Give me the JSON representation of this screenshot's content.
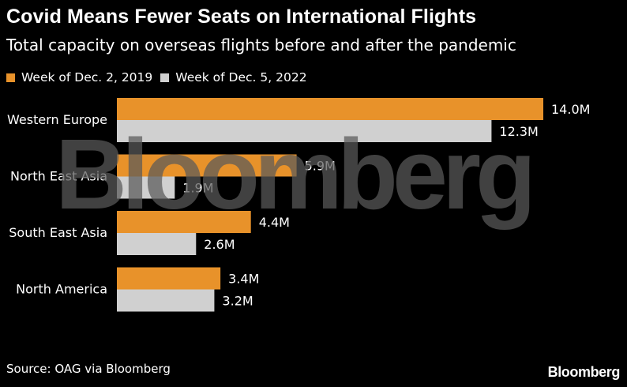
{
  "title": "Covid Means Fewer Seats on International Flights",
  "subtitle": "Total capacity on overseas flights before and after the pandemic",
  "source": "Source: OAG via Bloomberg",
  "logo": "Bloomberg",
  "watermark": "Bloomberg",
  "colors": {
    "background": "#000000",
    "series_2019": "#e8922a",
    "series_2022": "#d0d0d0",
    "text": "#ffffff"
  },
  "chart_data": {
    "type": "bar",
    "orientation": "horizontal",
    "categories": [
      "Western Europe",
      "North East Asia",
      "South East Asia",
      "North America"
    ],
    "series": [
      {
        "name": "Week of Dec. 2, 2019",
        "values": [
          14.0,
          5.9,
          4.4,
          3.4
        ],
        "labels": [
          "14.0M",
          "5.9M",
          "4.4M",
          "3.4M"
        ],
        "color": "#e8922a"
      },
      {
        "name": "Week of Dec. 5, 2022",
        "values": [
          12.3,
          1.9,
          2.6,
          3.2
        ],
        "labels": [
          "12.3M",
          "1.9M",
          "2.6M",
          "3.2M"
        ],
        "color": "#d0d0d0"
      }
    ],
    "unit": "M",
    "xlim": [
      0,
      14.0
    ],
    "legend_position": "top-left",
    "grid": false
  }
}
